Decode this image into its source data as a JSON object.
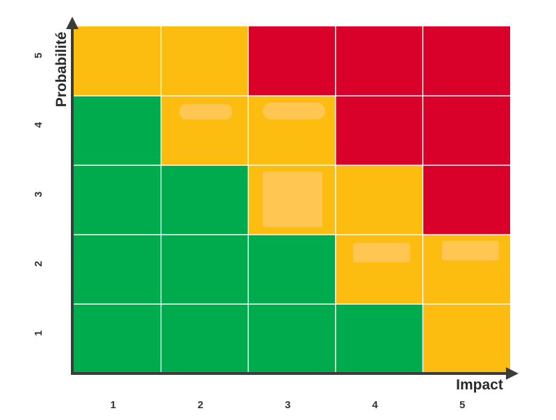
{
  "chart_data": {
    "type": "heatmap",
    "xlabel": "Impact",
    "ylabel": "Probabilité",
    "x_categories": [
      "1",
      "2",
      "3",
      "4",
      "5"
    ],
    "y_categories": [
      "1",
      "2",
      "3",
      "4",
      "5"
    ],
    "levels": [
      "green",
      "amber",
      "red"
    ],
    "colors": {
      "green": "#00ab4e",
      "amber": "#fcbd10",
      "red": "#d9002a",
      "blur": "#ffc75a",
      "grid": "#ffffff",
      "axis": "#3b3b3b"
    },
    "rows": [
      {
        "probability": "5",
        "cells": [
          "amber",
          "amber",
          "red",
          "red",
          "red"
        ]
      },
      {
        "probability": "4",
        "cells": [
          "green",
          "amber",
          "amber",
          "red",
          "red"
        ]
      },
      {
        "probability": "3",
        "cells": [
          "green",
          "green",
          "amber",
          "amber",
          "red"
        ]
      },
      {
        "probability": "2",
        "cells": [
          "green",
          "green",
          "green",
          "amber",
          "amber"
        ]
      },
      {
        "probability": "1",
        "cells": [
          "green",
          "green",
          "green",
          "green",
          "amber"
        ]
      }
    ]
  }
}
